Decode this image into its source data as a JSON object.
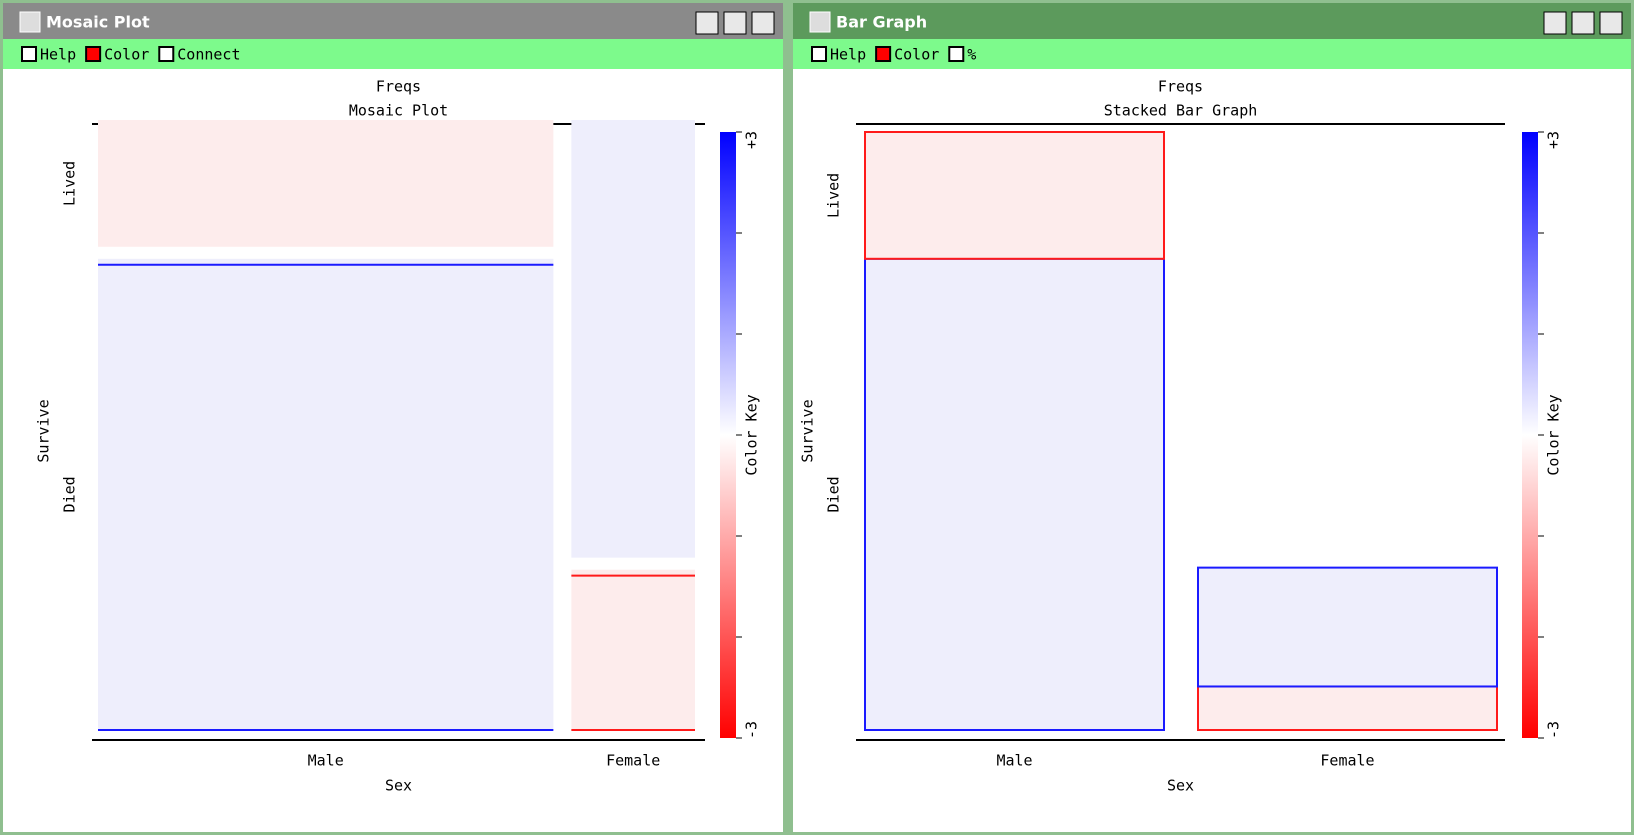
{
  "windows": [
    {
      "title": "Mosaic Plot",
      "menu": [
        "Help",
        "Color",
        "Connect"
      ],
      "chart": {
        "type": "mosaic",
        "title": "Freqs",
        "subtitle": "Mosaic Plot",
        "x_label": "Sex",
        "y_label": "Survive",
        "categories": [
          "Male",
          "Female"
        ],
        "series": [
          {
            "name": "Died",
            "values": [
              1364,
              126
            ],
            "colors": [
              "#eeeefc",
              "#fdecec"
            ],
            "edges": [
              "#1a1aff",
              "#ff1a1a"
            ]
          },
          {
            "name": "Lived",
            "values": [
              367,
              344
            ],
            "colors": [
              "#fdecec",
              "#eeeefc"
            ],
            "edges": [
              "#1a1aff",
              "#ff1a1a"
            ]
          }
        ],
        "key": {
          "label": "Color Key",
          "max": "+3",
          "min": "-3"
        }
      }
    },
    {
      "title": "Bar Graph",
      "menu": [
        "Help",
        "Color",
        "%"
      ],
      "chart": {
        "type": "stacked-bar",
        "title": "Freqs",
        "subtitle": "Stacked Bar Graph",
        "x_label": "Sex",
        "y_label": "Survive",
        "categories": [
          "Male",
          "Female"
        ],
        "series": [
          {
            "name": "Died",
            "values": [
              1364,
              126
            ],
            "colors": [
              "#eeeefc",
              "#fdecec"
            ],
            "edges": [
              "#1a1aff",
              "#ff1a1a"
            ]
          },
          {
            "name": "Lived",
            "values": [
              367,
              344
            ],
            "colors": [
              "#fdecec",
              "#eeeefc"
            ],
            "edges": [
              "#ff1a1a",
              "#1a1aff"
            ]
          }
        ],
        "key": {
          "label": "Color Key",
          "max": "+3",
          "min": "-3"
        }
      }
    }
  ]
}
